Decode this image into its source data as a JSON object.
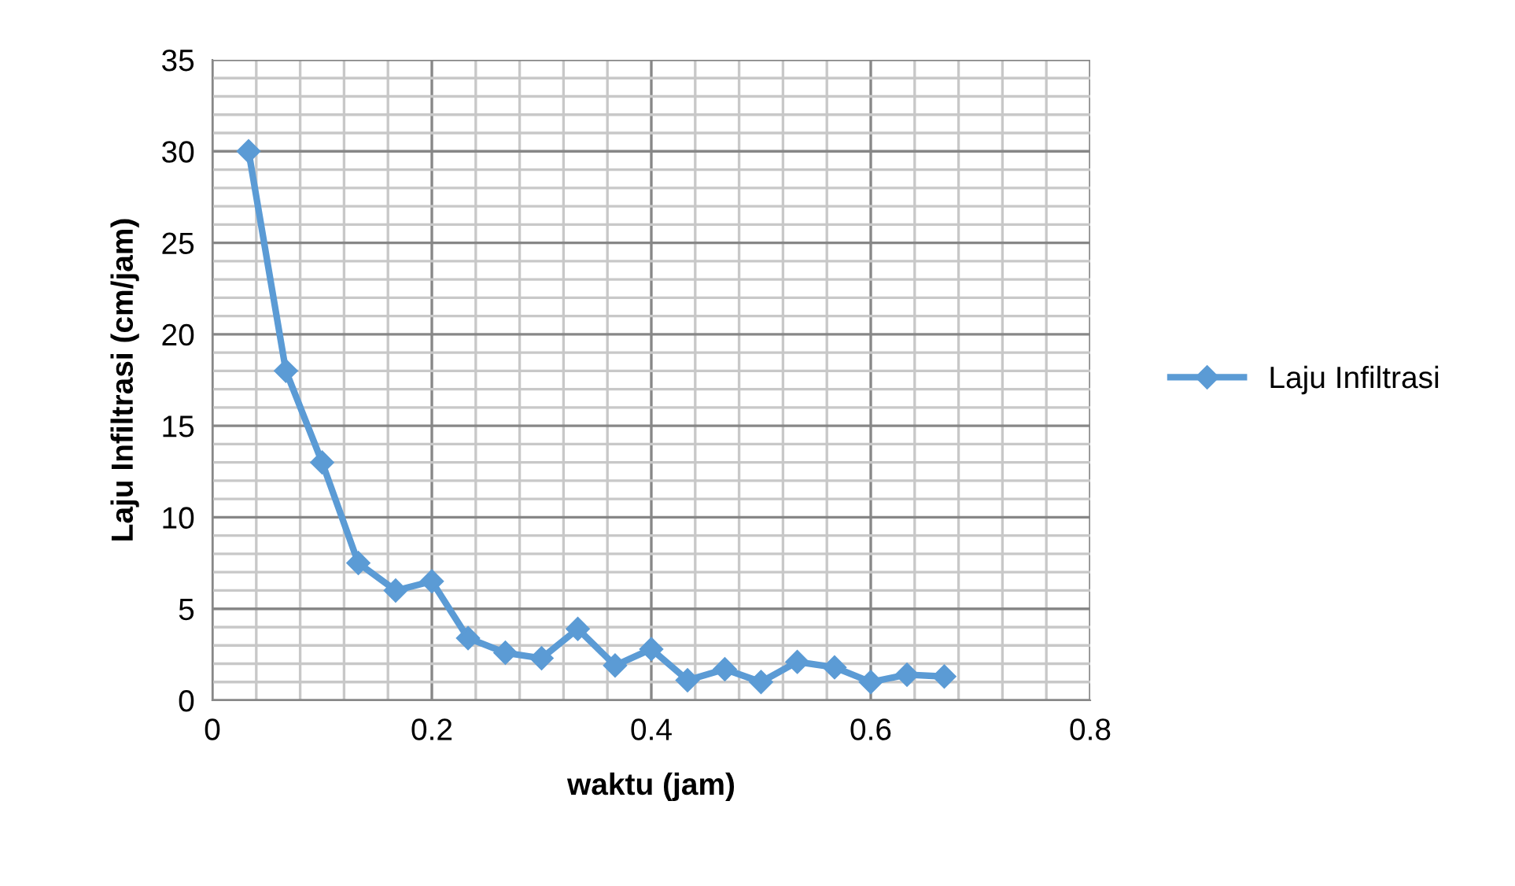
{
  "chart_data": {
    "type": "line",
    "xlabel": "waktu (jam)",
    "ylabel": "Laju Infiltrasi (cm/jam)",
    "x": [
      0.033,
      0.067,
      0.1,
      0.133,
      0.167,
      0.2,
      0.233,
      0.267,
      0.3,
      0.333,
      0.367,
      0.4,
      0.433,
      0.467,
      0.5,
      0.533,
      0.567,
      0.6,
      0.633,
      0.667
    ],
    "series": [
      {
        "name": "Laju Infiltrasi",
        "color": "#5b9bd5",
        "values": [
          30,
          18,
          13,
          7.5,
          6.0,
          6.5,
          3.4,
          2.6,
          2.3,
          3.9,
          1.9,
          2.8,
          1.1,
          1.7,
          1.0,
          2.1,
          1.8,
          1.0,
          1.4,
          1.3
        ]
      }
    ],
    "xlim": [
      0,
      0.8
    ],
    "ylim": [
      0,
      35
    ],
    "xticks": [
      0,
      {
        "value": 0.04,
        "label": null
      },
      {
        "value": 0.08,
        "label": null
      },
      {
        "value": 0.12,
        "label": null
      },
      {
        "value": 0.16,
        "label": null
      },
      0.2,
      {
        "value": 0.24,
        "label": null
      },
      {
        "value": 0.28,
        "label": null
      },
      {
        "value": 0.32,
        "label": null
      },
      {
        "value": 0.36,
        "label": null
      },
      0.4,
      {
        "value": 0.44,
        "label": null
      },
      {
        "value": 0.48,
        "label": null
      },
      {
        "value": 0.52,
        "label": null
      },
      {
        "value": 0.56,
        "label": null
      },
      0.6,
      {
        "value": 0.64,
        "label": null
      },
      {
        "value": 0.68,
        "label": null
      },
      {
        "value": 0.72,
        "label": null
      },
      {
        "value": 0.76,
        "label": null
      },
      0.8
    ],
    "yticks": [
      0,
      {
        "value": 1,
        "label": null
      },
      {
        "value": 2,
        "label": null
      },
      {
        "value": 3,
        "label": null
      },
      {
        "value": 4,
        "label": null
      },
      5,
      {
        "value": 6,
        "label": null
      },
      {
        "value": 7,
        "label": null
      },
      {
        "value": 8,
        "label": null
      },
      {
        "value": 9,
        "label": null
      },
      10,
      {
        "value": 11,
        "label": null
      },
      {
        "value": 12,
        "label": null
      },
      {
        "value": 13,
        "label": null
      },
      {
        "value": 14,
        "label": null
      },
      15,
      {
        "value": 16,
        "label": null
      },
      {
        "value": 17,
        "label": null
      },
      {
        "value": 18,
        "label": null
      },
      {
        "value": 19,
        "label": null
      },
      20,
      {
        "value": 21,
        "label": null
      },
      {
        "value": 22,
        "label": null
      },
      {
        "value": 23,
        "label": null
      },
      {
        "value": 24,
        "label": null
      },
      25,
      {
        "value": 26,
        "label": null
      },
      {
        "value": 27,
        "label": null
      },
      {
        "value": 28,
        "label": null
      },
      {
        "value": 29,
        "label": null
      },
      30,
      {
        "value": 31,
        "label": null
      },
      {
        "value": 32,
        "label": null
      },
      {
        "value": 33,
        "label": null
      },
      {
        "value": 34,
        "label": null
      },
      35
    ],
    "grid": true,
    "legend": "right",
    "marker": "diamond",
    "line_style": "solid"
  }
}
